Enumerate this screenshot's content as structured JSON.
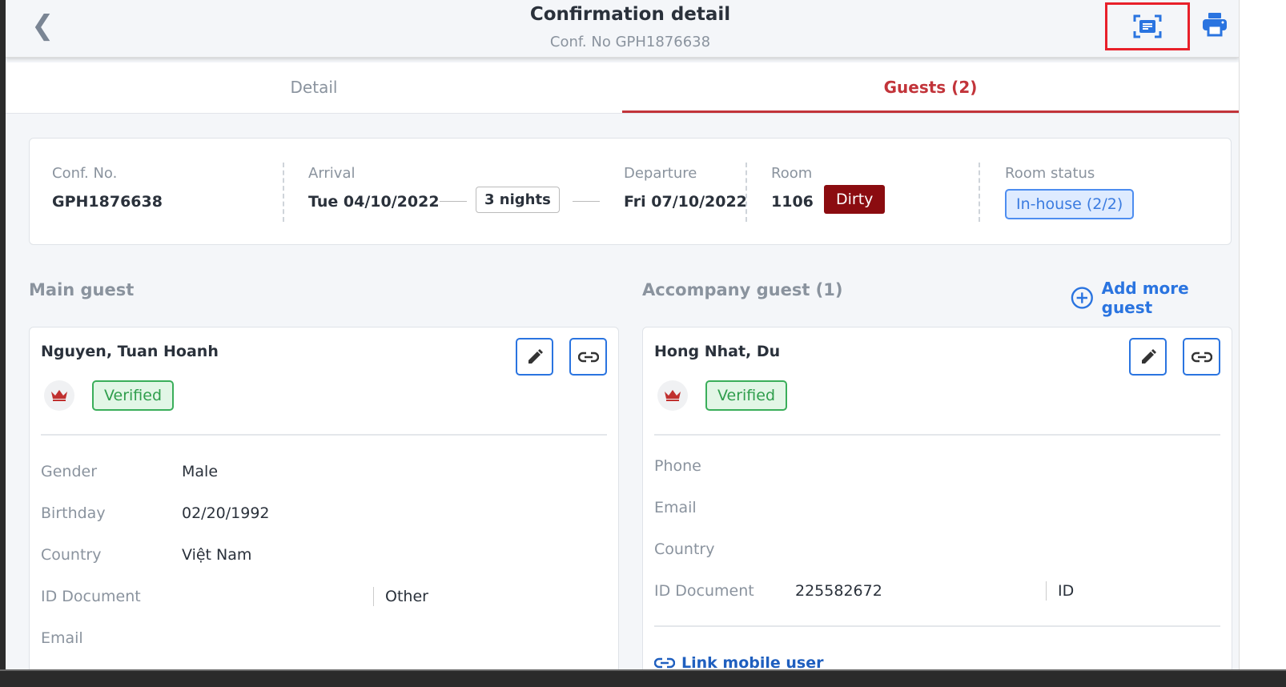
{
  "header": {
    "title": "Confirmation detail",
    "subtitle": "Conf. No GPH1876638"
  },
  "tabs": [
    {
      "label": "Detail"
    },
    {
      "label": "Guests (2)"
    }
  ],
  "summary": {
    "conf_label": "Conf. No.",
    "conf_value": "GPH1876638",
    "arrival_label": "Arrival",
    "arrival_value": "Tue 04/10/2022",
    "nights": "3 nights",
    "departure_label": "Departure",
    "departure_value": "Fri 07/10/2022",
    "room_label": "Room",
    "room_value": "1106",
    "room_badge": "Dirty",
    "status_label": "Room status",
    "status_value": "In-house (2/2)"
  },
  "main_guest": {
    "section": "Main guest",
    "name": "Nguyen, Tuan Hoanh",
    "badge": "Verified",
    "fields": [
      {
        "label": "Gender",
        "value": "Male"
      },
      {
        "label": "Birthday",
        "value": "02/20/1992"
      },
      {
        "label": "Country",
        "value": "Việt Nam"
      },
      {
        "label": "ID Document",
        "value": "",
        "type": "Other"
      },
      {
        "label": "Email",
        "value": ""
      }
    ]
  },
  "accompany": {
    "section": "Accompany guest (1)",
    "add_label": "Add more guest",
    "name": "Hong Nhat, Du",
    "badge": "Verified",
    "fields": [
      {
        "label": "Phone",
        "value": ""
      },
      {
        "label": "Email",
        "value": ""
      },
      {
        "label": "Country",
        "value": ""
      },
      {
        "label": "ID Document",
        "value": "225582672",
        "type": "ID"
      }
    ],
    "link_label": "Link mobile user"
  },
  "colors": {
    "accent": "#2a74e0",
    "active_tab": "#c2343a",
    "dirty": "#8b0c10",
    "verified": "#3aae5a"
  }
}
